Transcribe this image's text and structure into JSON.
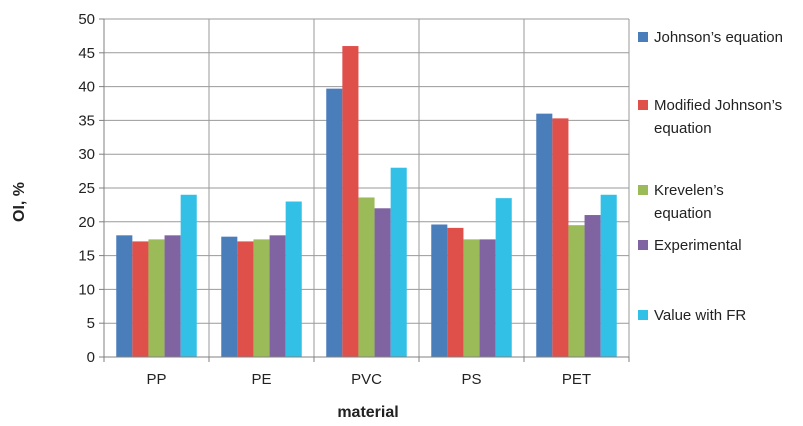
{
  "chart_data": {
    "type": "bar",
    "title": "",
    "xlabel": "material",
    "ylabel": "OI, %",
    "ylim": [
      0,
      50
    ],
    "yticks": [
      0,
      5,
      10,
      15,
      20,
      25,
      30,
      35,
      40,
      45,
      50
    ],
    "grid": true,
    "legend_position": "right",
    "categories": [
      "PP",
      "PE",
      "PVC",
      "PS",
      "PET"
    ],
    "series": [
      {
        "name": "Johnson’s equation",
        "legend_lines": [
          "Johnson’s equation"
        ],
        "color": "#4a7ebb",
        "values": [
          18.0,
          17.8,
          39.7,
          19.6,
          36.0
        ]
      },
      {
        "name": "Modified Johnson’s equation",
        "legend_lines": [
          "Modified Johnson’s",
          "equation"
        ],
        "color": "#e0504b",
        "values": [
          17.1,
          17.1,
          46.0,
          19.1,
          35.3
        ]
      },
      {
        "name": "Krevelen’s equation",
        "legend_lines": [
          "Krevelen’s",
          "equation"
        ],
        "color": "#9bbb59",
        "values": [
          17.4,
          17.4,
          23.6,
          17.4,
          19.5
        ]
      },
      {
        "name": "Experimental",
        "legend_lines": [
          "Experimental"
        ],
        "color": "#8064a2",
        "values": [
          18.0,
          18.0,
          22.0,
          17.4,
          21.0
        ]
      },
      {
        "name": "Value with FR",
        "legend_lines": [
          "Value with FR"
        ],
        "color": "#33c0e6",
        "values": [
          24.0,
          23.0,
          28.0,
          23.5,
          24.0
        ]
      }
    ]
  }
}
